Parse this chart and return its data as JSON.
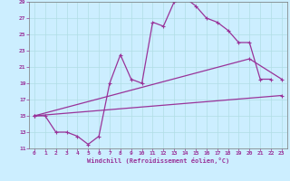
{
  "xlabel": "Windchill (Refroidissement éolien,°C)",
  "bg_color": "#cceeff",
  "line_color": "#993399",
  "xlim": [
    -0.5,
    23.5
  ],
  "ylim": [
    11,
    29
  ],
  "xticks": [
    0,
    1,
    2,
    3,
    4,
    5,
    6,
    7,
    8,
    9,
    10,
    11,
    12,
    13,
    14,
    15,
    16,
    17,
    18,
    19,
    20,
    21,
    22,
    23
  ],
  "yticks": [
    11,
    13,
    15,
    17,
    19,
    21,
    23,
    25,
    27,
    29
  ],
  "line1_x": [
    0,
    1,
    2,
    3,
    4,
    5,
    6,
    7,
    8,
    9,
    10,
    11,
    12,
    13,
    14,
    15,
    16,
    17,
    18,
    19,
    20,
    21,
    22
  ],
  "line1_y": [
    15.0,
    15.0,
    13.0,
    13.0,
    12.5,
    11.5,
    12.5,
    19.0,
    22.5,
    19.5,
    19.0,
    26.5,
    26.0,
    29.0,
    29.5,
    28.5,
    27.0,
    26.5,
    25.5,
    24.0,
    24.0,
    19.5,
    19.5
  ],
  "line2_x": [
    0,
    23
  ],
  "line2_y": [
    15.0,
    17.5
  ],
  "line3_x": [
    0,
    20,
    23
  ],
  "line3_y": [
    15.0,
    22.0,
    19.5
  ],
  "grid_color": "#b0dde4",
  "marker": "+"
}
